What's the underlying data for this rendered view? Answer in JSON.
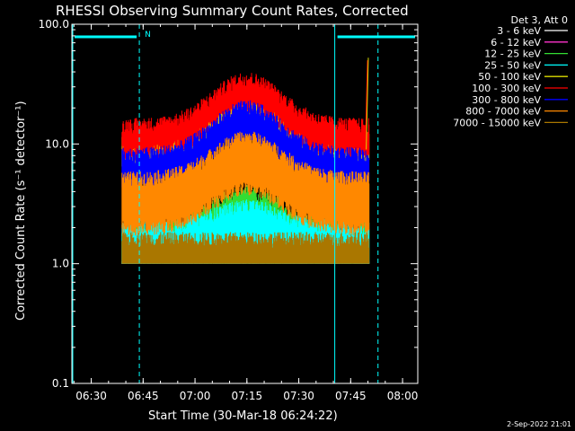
{
  "chart_data": {
    "type": "line",
    "title": "RHESSI Observing Summary Count Rates, Corrected",
    "xlabel": "Start Time (30-Mar-18 06:24:22)",
    "ylabel": "Corrected Count Rate (s⁻¹ detector⁻¹)",
    "yscale": "log",
    "ylim": [
      0.1,
      100
    ],
    "xlim_minutes": [
      0,
      100
    ],
    "x_ticks": [
      {
        "label": "06:30",
        "minutes": 5.6
      },
      {
        "label": "06:45",
        "minutes": 20.6
      },
      {
        "label": "07:00",
        "minutes": 35.6
      },
      {
        "label": "07:15",
        "minutes": 50.6
      },
      {
        "label": "07:30",
        "minutes": 65.6
      },
      {
        "label": "07:45",
        "minutes": 80.6
      },
      {
        "label": "08:00",
        "minutes": 95.6
      }
    ],
    "y_ticks": [
      {
        "label": "100.0",
        "value": 100
      },
      {
        "label": "10.0",
        "value": 10
      },
      {
        "label": "1.0",
        "value": 1
      },
      {
        "label": "0.1",
        "value": 0.1
      }
    ],
    "legend_header": "Det 3, Att 0",
    "series": [
      {
        "name": "3 - 6 keV",
        "color": "#ffffff",
        "base": 1.0,
        "peak": 1.0,
        "noise": 1.0
      },
      {
        "name": "6 - 12 keV",
        "color": "#ff33cc",
        "base": 1.0,
        "peak": 1.0,
        "noise": 1.0
      },
      {
        "name": "12 - 25 keV",
        "color": "#33dd33",
        "base": 1.0,
        "peak": 2.0,
        "noise": 2.0
      },
      {
        "name": "25 - 50 keV",
        "color": "#00ffff",
        "base": 1.0,
        "peak": 1.5,
        "noise": 2.0
      },
      {
        "name": "50 - 100 keV",
        "color": "#dddd00",
        "base": 8.5,
        "peak": 20,
        "noise": 1.3
      },
      {
        "name": "100 - 300 keV",
        "color": "#ff0000",
        "base": 11,
        "peak": 27,
        "noise": 1.3
      },
      {
        "name": "300 - 800 keV",
        "color": "#0000ff",
        "base": 6,
        "peak": 15,
        "noise": 1.35
      },
      {
        "name": "800 - 7000 keV",
        "color": "#ff8800",
        "base": 3.2,
        "peak": 7,
        "noise": 1.6
      },
      {
        "name": "7000 - 15000 keV",
        "color": "#aa7700",
        "base": 1.0,
        "peak": 1.0,
        "noise": 1.6
      }
    ],
    "data_window_minutes": [
      14.5,
      86.0
    ],
    "peak_time_minutes": 50.6,
    "spike_end": {
      "minutes": 85.5,
      "value": 50
    },
    "night_intervals_minutes": [
      [
        0,
        19.5
      ],
      [
        76.0,
        100
      ]
    ],
    "saa_markers_minutes": [
      19.5,
      88.5
    ],
    "saa_label": "N",
    "timestamp": "2-Sep-2022 21:01"
  }
}
